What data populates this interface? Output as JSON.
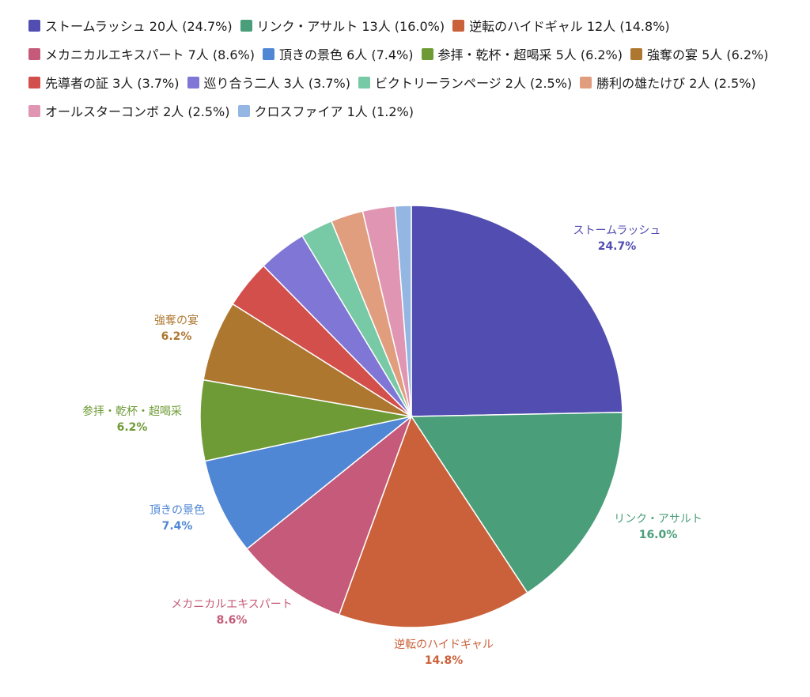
{
  "chart_data": {
    "type": "pie",
    "unit": "人",
    "slices": [
      {
        "label": "ストームラッシュ",
        "count": 20,
        "percent": "24.7%",
        "color": "#524DB1"
      },
      {
        "label": "リンク・アサルト",
        "count": 13,
        "percent": "16.0%",
        "color": "#4A9E7A"
      },
      {
        "label": "逆転のハイドギャル",
        "count": 12,
        "percent": "14.8%",
        "color": "#CB613A"
      },
      {
        "label": "メカニカルエキスパート",
        "count": 7,
        "percent": "8.6%",
        "color": "#C55A7A"
      },
      {
        "label": "頂きの景色",
        "count": 6,
        "percent": "7.4%",
        "color": "#4F87D5"
      },
      {
        "label": "参拝・乾杯・超喝采",
        "count": 5,
        "percent": "6.2%",
        "color": "#6F9B37"
      },
      {
        "label": "強奪の宴",
        "count": 5,
        "percent": "6.2%",
        "color": "#AE7730"
      },
      {
        "label": "先導者の証",
        "count": 3,
        "percent": "3.7%",
        "color": "#D24F4B"
      },
      {
        "label": "巡り合う二人",
        "count": 3,
        "percent": "3.7%",
        "color": "#7F76D6"
      },
      {
        "label": "ビクトリーランページ",
        "count": 2,
        "percent": "2.5%",
        "color": "#78C9A5"
      },
      {
        "label": "勝利の雄たけび",
        "count": 2,
        "percent": "2.5%",
        "color": "#E19E7E"
      },
      {
        "label": "オールスターコンボ",
        "count": 2,
        "percent": "2.5%",
        "color": "#E096B2"
      },
      {
        "label": "クロスファイア",
        "count": 1,
        "percent": "1.2%",
        "color": "#93B6E3"
      }
    ],
    "legend_entries": [
      "ストームラッシュ 20人 (24.7%)",
      "リンク・アサルト 13人 (16.0%)",
      "逆転のハイドギャル 12人 (14.8%)",
      "メカニカルエキスパート 7人 (8.6%)",
      "頂きの景色 6人 (7.4%)",
      "参拝・乾杯・超喝采 5人 (6.2%)",
      "強奪の宴 5人 (6.2%)",
      "先導者の証 3人 (3.7%)",
      "巡り合う二人 3人 (3.7%)",
      "ビクトリーランページ 2人 (2.5%)",
      "勝利の雄たけび 2人 (2.5%)",
      "オールスターコンボ 2人 (2.5%)",
      "クロスファイア 1人 (1.2%)"
    ],
    "labeled_slices": [
      0,
      1,
      2,
      3,
      4,
      5,
      6
    ],
    "legend_position": "top",
    "start_angle_deg": 0,
    "direction": "clockwise"
  }
}
